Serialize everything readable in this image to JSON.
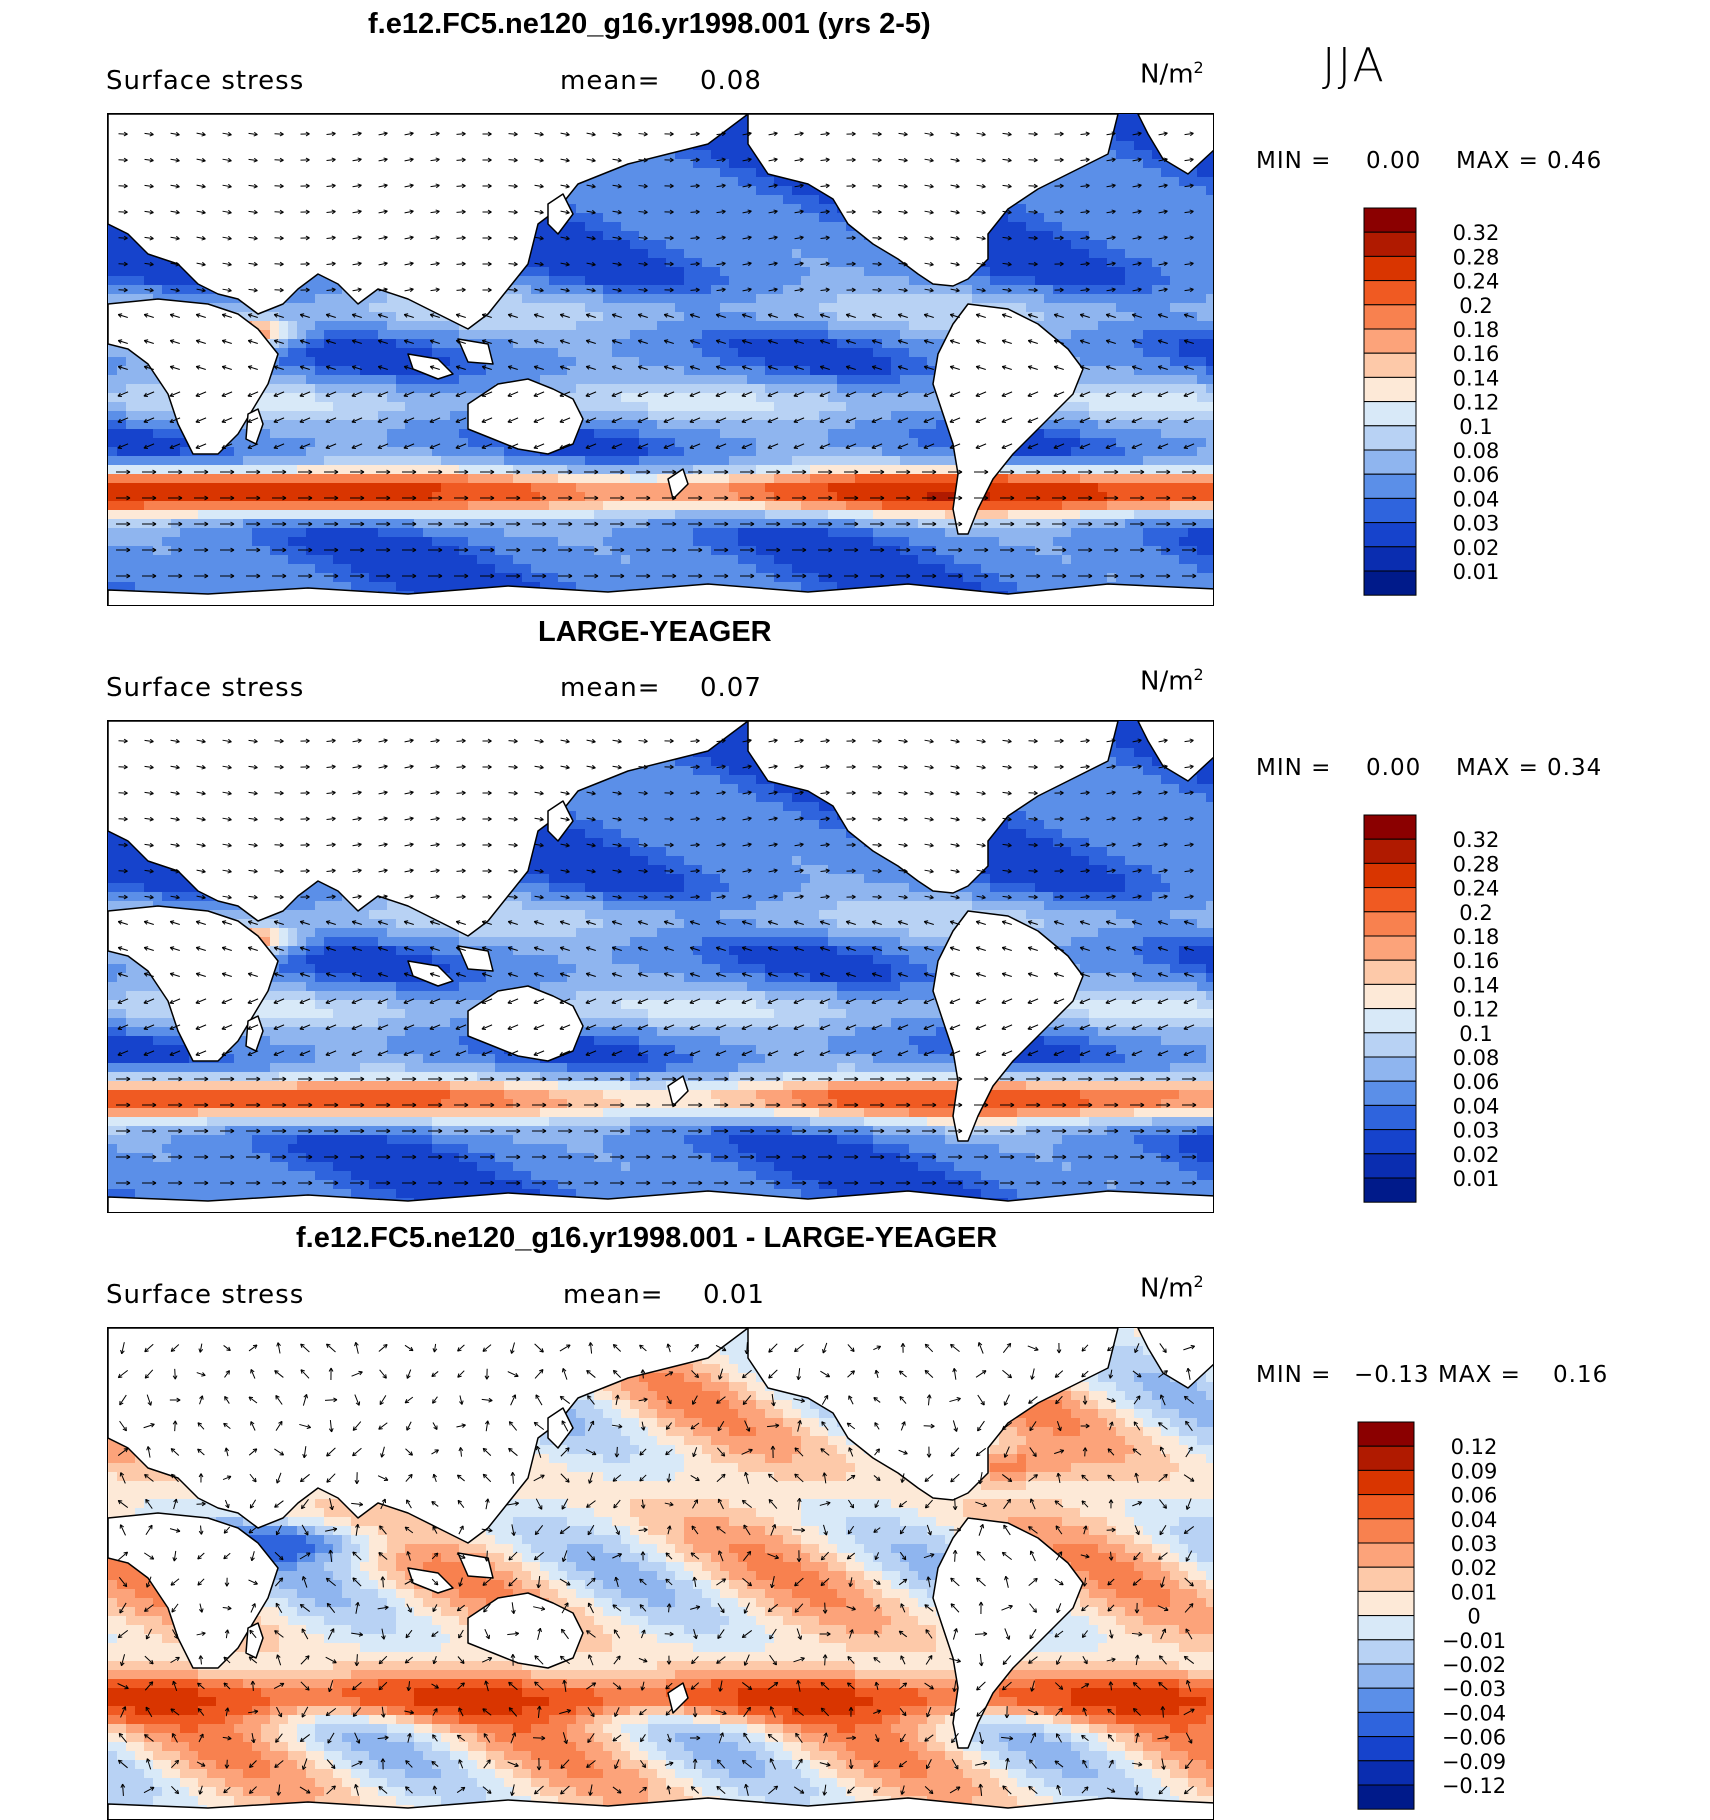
{
  "season": "JJA",
  "chart_data": [
    {
      "type": "heatmap",
      "title": "f.e12.FC5.ne120_g16.yr1998.001 (yrs 2-5)",
      "variable": "Surface stress",
      "mean_label": "mean=",
      "mean": "0.08",
      "units": "N/m",
      "units_sup": "2",
      "min_label": "MIN =",
      "min": "0.00",
      "max_label": "MAX =",
      "max": "0.46",
      "colorbar_levels": [
        "0.32",
        "0.28",
        "0.24",
        "0.2",
        "0.18",
        "0.16",
        "0.14",
        "0.12",
        "0.1",
        "0.08",
        "0.06",
        "0.04",
        "0.03",
        "0.02",
        "0.01"
      ],
      "colorbar_colors": [
        "#8b0000",
        "#b01a00",
        "#d93500",
        "#f05a22",
        "#f8814f",
        "#fca37a",
        "#fdc9a9",
        "#fde9d7",
        "#d8e9f8",
        "#b8d2f4",
        "#8fb5ef",
        "#5b8fe8",
        "#2f64dd",
        "#1643cc",
        "#0a2db0",
        "#001a8a"
      ],
      "wind": "easterly-trades"
    },
    {
      "type": "heatmap",
      "title": "LARGE-YEAGER",
      "variable": "Surface stress",
      "mean_label": "mean=",
      "mean": "0.07",
      "units": "N/m",
      "units_sup": "2",
      "min_label": "MIN =",
      "min": "0.00",
      "max_label": "MAX =",
      "max": "0.34",
      "colorbar_levels": [
        "0.32",
        "0.28",
        "0.24",
        "0.2",
        "0.18",
        "0.16",
        "0.14",
        "0.12",
        "0.1",
        "0.08",
        "0.06",
        "0.04",
        "0.03",
        "0.02",
        "0.01"
      ],
      "colorbar_colors": [
        "#8b0000",
        "#b01a00",
        "#d93500",
        "#f05a22",
        "#f8814f",
        "#fca37a",
        "#fdc9a9",
        "#fde9d7",
        "#d8e9f8",
        "#b8d2f4",
        "#8fb5ef",
        "#5b8fe8",
        "#2f64dd",
        "#1643cc",
        "#0a2db0",
        "#001a8a"
      ],
      "wind": "easterly-trades"
    },
    {
      "type": "heatmap",
      "title": "f.e12.FC5.ne120_g16.yr1998.001 - LARGE-YEAGER",
      "variable": "Surface stress",
      "mean_label": "mean=",
      "mean": "0.01",
      "units": "N/m",
      "units_sup": "2",
      "min_label": "MIN =",
      "min": "−0.13",
      "max_label": "MAX =",
      "max": "0.16",
      "colorbar_levels": [
        "0.12",
        "0.09",
        "0.06",
        "0.04",
        "0.03",
        "0.02",
        "0.01",
        "0",
        "−0.01",
        "−0.02",
        "−0.03",
        "−0.04",
        "−0.06",
        "−0.09",
        "−0.12"
      ],
      "colorbar_colors": [
        "#8b0000",
        "#b01a00",
        "#d93500",
        "#f05a22",
        "#f8814f",
        "#fca37a",
        "#fdc9a9",
        "#fde9d7",
        "#d8e9f8",
        "#b8d2f4",
        "#8fb5ef",
        "#5b8fe8",
        "#2f64dd",
        "#1643cc",
        "#0a2db0",
        "#001a8a"
      ],
      "wind": "difference"
    }
  ]
}
